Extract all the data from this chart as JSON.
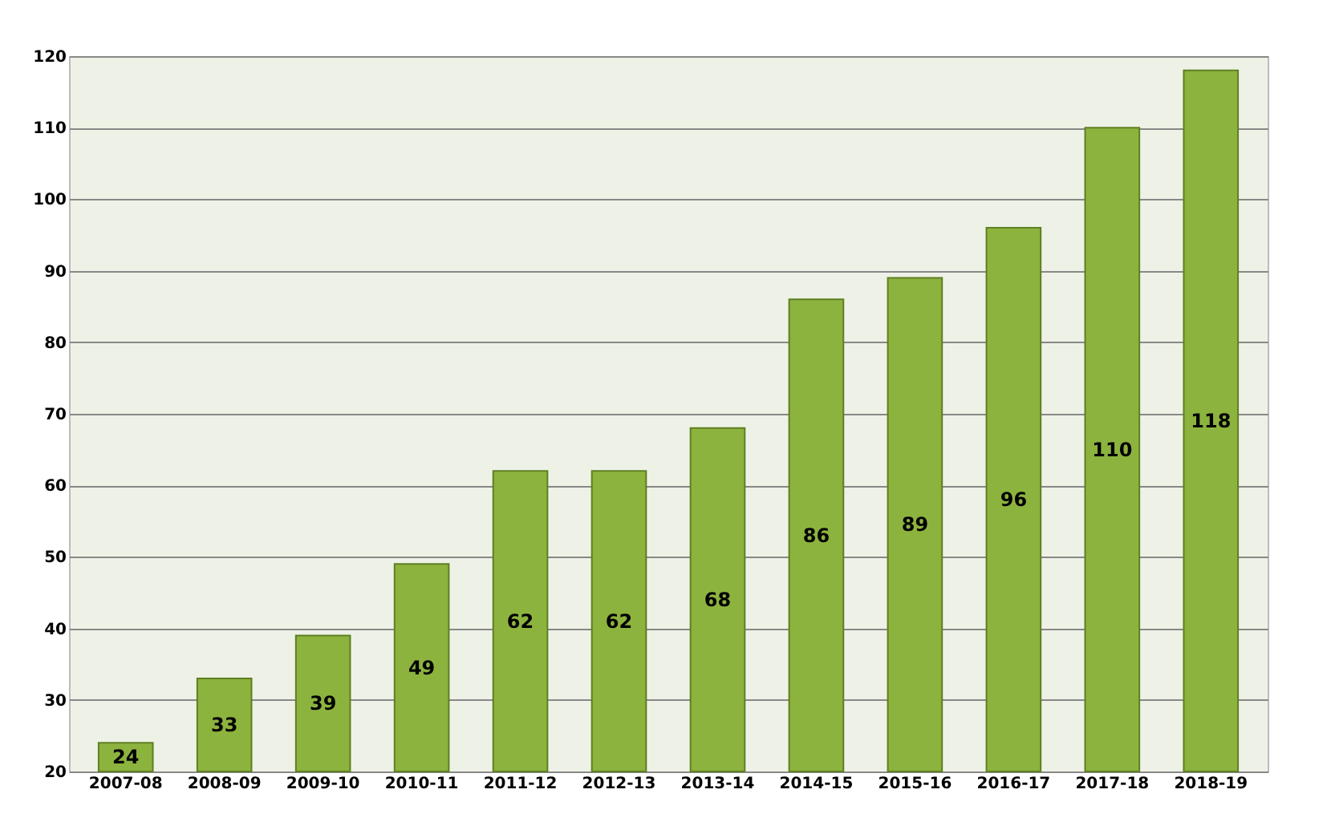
{
  "chart_data": {
    "type": "bar",
    "categories": [
      "2007-08",
      "2008-09",
      "2009-10",
      "2010-11",
      "2011-12",
      "2012-13",
      "2013-14",
      "2014-15",
      "2015-16",
      "2016-17",
      "2017-18",
      "2018-19"
    ],
    "values": [
      24,
      33,
      39,
      49,
      62,
      62,
      68,
      86,
      89,
      96,
      110,
      118
    ],
    "color": "#8db33f",
    "ylim": [
      20,
      120
    ],
    "yticks": [
      20,
      30,
      40,
      50,
      60,
      70,
      80,
      90,
      100,
      110,
      120
    ],
    "grid": "y",
    "data_labels": true
  }
}
